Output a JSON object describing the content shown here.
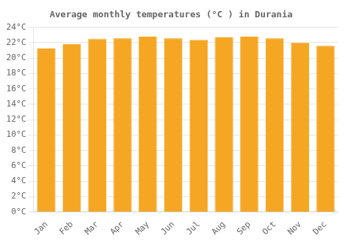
{
  "chart_data": {
    "type": "bar",
    "title": "Average monthly temperatures (°C ) in Durania",
    "categories": [
      "Jan",
      "Feb",
      "Mar",
      "Apr",
      "May",
      "Jun",
      "Jul",
      "Aug",
      "Sep",
      "Oct",
      "Nov",
      "Dec"
    ],
    "values": [
      21.3,
      21.8,
      22.5,
      22.6,
      22.8,
      22.6,
      22.4,
      22.7,
      22.8,
      22.6,
      22.0,
      21.6
    ],
    "color": "#F5A623",
    "ylim": [
      0,
      24
    ],
    "yticks": [
      {
        "value": 0,
        "label": "0°C"
      },
      {
        "value": 2,
        "label": "2°C"
      },
      {
        "value": 4,
        "label": "4°C"
      },
      {
        "value": 6,
        "label": "6°C"
      },
      {
        "value": 8,
        "label": "8°C"
      },
      {
        "value": 10,
        "label": "10°C"
      },
      {
        "value": 12,
        "label": "12°C"
      },
      {
        "value": 14,
        "label": "14°C"
      },
      {
        "value": 16,
        "label": "16°C"
      },
      {
        "value": 18,
        "label": "18°C"
      },
      {
        "value": 20,
        "label": "20°C"
      },
      {
        "value": 22,
        "label": "22°C"
      },
      {
        "value": 24,
        "label": "24°C"
      }
    ],
    "grid": true
  }
}
